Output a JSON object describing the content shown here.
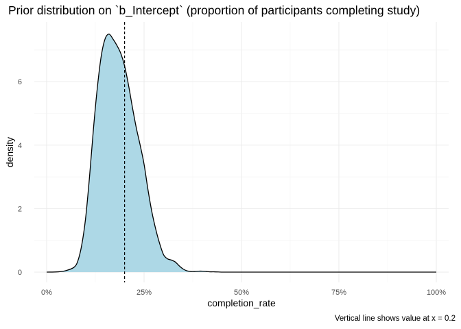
{
  "chart_data": {
    "type": "area",
    "title": "Prior distribution on `b_Intercept` (proportion of participants completing study)",
    "xlabel": "completion_rate",
    "ylabel": "density",
    "caption": "Vertical line shows value at x = 0.2",
    "xlim": [
      0,
      1
    ],
    "ylim": [
      0,
      7.5
    ],
    "x_ticks": [
      {
        "value": 0,
        "label": "0%"
      },
      {
        "value": 0.25,
        "label": "25%"
      },
      {
        "value": 0.5,
        "label": "50%"
      },
      {
        "value": 0.75,
        "label": "75%"
      },
      {
        "value": 1,
        "label": "100%"
      }
    ],
    "y_ticks": [
      {
        "value": 0,
        "label": "0"
      },
      {
        "value": 2,
        "label": "2"
      },
      {
        "value": 4,
        "label": "4"
      },
      {
        "value": 6,
        "label": "6"
      }
    ],
    "grid": true,
    "vline": {
      "x": 0.2,
      "style": "dashed"
    },
    "fill_color": "#add8e6",
    "line_color": "#000000",
    "series": [
      {
        "x": [
          0,
          0.03,
          0.05,
          0.07,
          0.08,
          0.09,
          0.1,
          0.11,
          0.12,
          0.13,
          0.14,
          0.15,
          0.16,
          0.17,
          0.18,
          0.19,
          0.2,
          0.21,
          0.22,
          0.23,
          0.24,
          0.25,
          0.26,
          0.27,
          0.28,
          0.29,
          0.3,
          0.31,
          0.32,
          0.33,
          0.34,
          0.35,
          0.36,
          0.37,
          0.38,
          0.39,
          0.4,
          0.41,
          0.42,
          0.43,
          0.45,
          0.46,
          0.47,
          0.48,
          0.5,
          0.6,
          0.8,
          1.0
        ],
        "y": [
          0,
          0.01,
          0.05,
          0.15,
          0.35,
          0.85,
          1.7,
          3.0,
          4.5,
          5.8,
          6.8,
          7.35,
          7.5,
          7.35,
          7.15,
          6.9,
          6.5,
          5.9,
          5.2,
          4.55,
          4.0,
          3.4,
          2.6,
          1.9,
          1.35,
          0.9,
          0.55,
          0.42,
          0.38,
          0.32,
          0.2,
          0.1,
          0.04,
          0.02,
          0.02,
          0.03,
          0.03,
          0.02,
          0.01,
          0.01,
          0.0,
          0.0,
          0.0,
          0.0,
          0.0,
          0.0,
          0.0,
          0.0
        ]
      }
    ]
  }
}
